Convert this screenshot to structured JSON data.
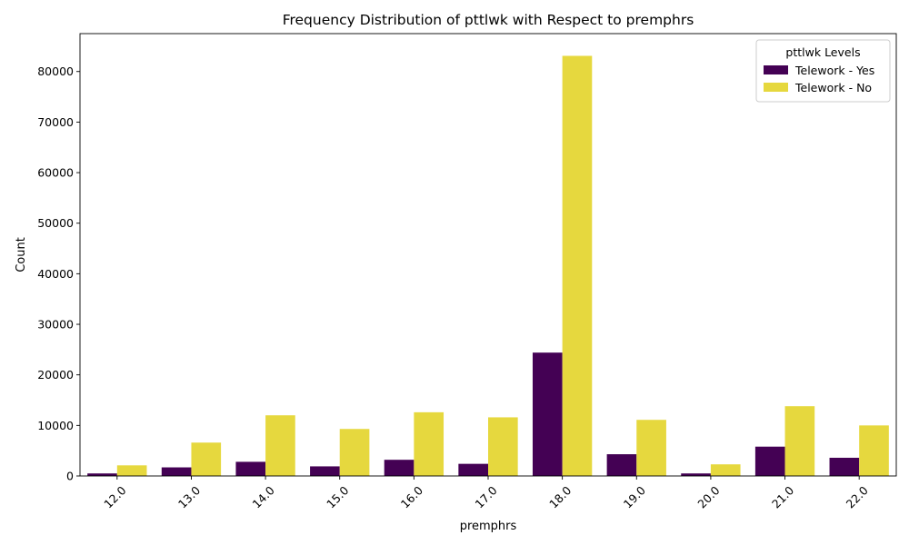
{
  "chart_data": {
    "type": "bar",
    "title": "Frequency Distribution of pttlwk with Respect to premphrs",
    "xlabel": "premphrs",
    "ylabel": "Count",
    "categories": [
      "12.0",
      "13.0",
      "14.0",
      "15.0",
      "16.0",
      "17.0",
      "18.0",
      "19.0",
      "20.0",
      "21.0",
      "22.0"
    ],
    "series": [
      {
        "name": "Telework - Yes",
        "color": "#440154",
        "values": [
          500,
          1700,
          2800,
          1900,
          3200,
          2400,
          24400,
          4300,
          500,
          5800,
          3600
        ]
      },
      {
        "name": "Telework - No",
        "color": "#e6d83e",
        "values": [
          2100,
          6600,
          12000,
          9300,
          12600,
          11600,
          83100,
          11100,
          2300,
          13800,
          10000
        ]
      }
    ],
    "ylim": [
      0,
      87500
    ],
    "yticks": [
      0,
      10000,
      20000,
      30000,
      40000,
      50000,
      60000,
      70000,
      80000
    ],
    "legend": {
      "title": "pttlwk Levels",
      "position": "top-right"
    },
    "grid": false
  }
}
